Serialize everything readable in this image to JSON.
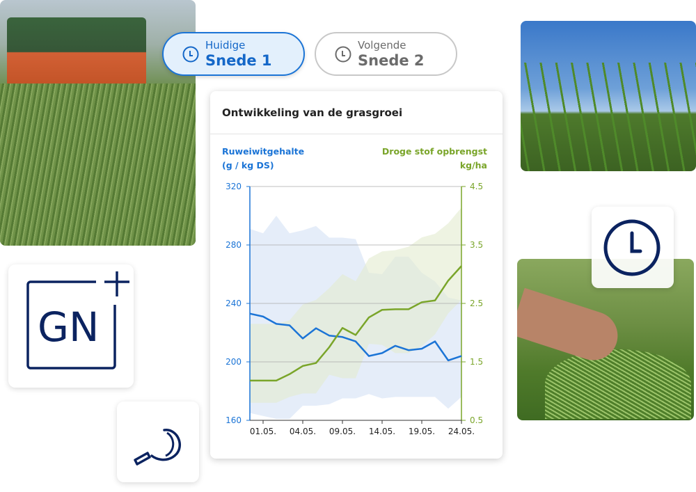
{
  "tabs": [
    {
      "small": "Huidige",
      "big": "Snede 1",
      "icon": "clock-icon",
      "active": true
    },
    {
      "small": "Volgende",
      "big": "Snede 2",
      "icon": "clock-icon",
      "active": false
    }
  ],
  "logo": {
    "text": "GN+"
  },
  "colors": {
    "blue": "#1b74d6",
    "green": "#7aa52a",
    "navy": "#0b2360",
    "blue_band": "#dce7f7",
    "green_band": "#e3ebcf"
  },
  "card": {
    "title": "Ontwikkeling van de grasgroei"
  },
  "chart_data": {
    "type": "line",
    "title": "Ontwikkeling van de grasgroei",
    "y_left_label": [
      "Ruweiwitgehalte",
      "(g / kg DS)"
    ],
    "y_right_label": [
      "Droge stof opbrengst",
      "kg/ha"
    ],
    "y_left_lim": [
      160,
      320
    ],
    "y_right_lim": [
      0.5,
      4.5
    ],
    "y_left_ticks": [
      "320",
      "280",
      "240",
      "200",
      "160"
    ],
    "y_right_ticks": [
      "4.5",
      "3.5",
      "2.5",
      "1.5",
      "0.5"
    ],
    "x_ticks": [
      {
        "index": 1,
        "label": "01.05."
      },
      {
        "index": 4,
        "label": "04.05."
      },
      {
        "index": 7,
        "label": "09.05."
      },
      {
        "index": 10,
        "label": "14.05."
      },
      {
        "index": 13,
        "label": "19.05."
      },
      {
        "index": 16,
        "label": "24.05."
      }
    ],
    "grid": true,
    "series": [
      {
        "axis": "left",
        "color": "#1b74d6",
        "values": [
          233,
          231,
          226,
          225,
          216,
          223,
          218,
          217,
          214,
          204,
          206,
          211,
          208,
          209,
          214,
          201,
          204
        ],
        "band_upper": [
          291,
          288,
          300,
          288,
          290,
          293,
          285,
          285,
          284,
          261,
          260,
          272,
          272,
          261,
          255,
          244,
          242
        ],
        "band_lower": [
          165,
          163,
          161,
          161,
          170,
          170,
          171,
          175,
          175,
          178,
          175,
          176,
          176,
          176,
          176,
          168,
          176
        ]
      },
      {
        "axis": "right",
        "color": "#7aa52a",
        "values": [
          1.18,
          1.18,
          1.18,
          1.29,
          1.43,
          1.48,
          1.75,
          2.08,
          1.96,
          2.26,
          2.39,
          2.4,
          2.4,
          2.52,
          2.55,
          2.89,
          3.14
        ],
        "band_upper": [
          2.15,
          2.15,
          2.15,
          2.21,
          2.48,
          2.56,
          2.76,
          3.0,
          2.88,
          3.27,
          3.39,
          3.41,
          3.47,
          3.63,
          3.69,
          3.87,
          4.14
        ],
        "band_lower": [
          0.8,
          0.8,
          0.8,
          0.9,
          0.96,
          0.96,
          1.28,
          1.22,
          1.22,
          1.81,
          1.79,
          1.65,
          1.65,
          1.77,
          1.97,
          2.33,
          2.56
        ]
      }
    ]
  }
}
